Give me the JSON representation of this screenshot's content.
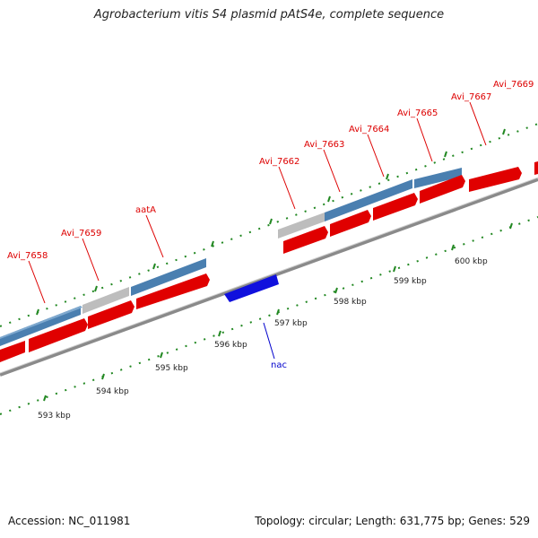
{
  "title": "Agrobacterium vitis S4 plasmid pAtS4e, complete sequence",
  "footer": {
    "accession": "Accession: NC_011981",
    "topology": "Topology: circular; Length: 631,775 bp; Genes: 529"
  },
  "colors": {
    "forward_gene": "#e00000",
    "reverse_gene": "#1010dd",
    "cds_feature": "#4a7fb0",
    "pseudo_feature": "#bdbdbd",
    "backbone": "#8a8a8a",
    "tick": "#228822",
    "label_red": "#dd0000",
    "label_blue": "#0000cc"
  },
  "scale": {
    "tick_labels": [
      "593 kbp",
      "594 kbp",
      "595 kbp",
      "596 kbp",
      "597 kbp",
      "598 kbp",
      "599 kbp",
      "600 kbp"
    ]
  },
  "gene_labels": [
    {
      "name": "Avi_7658"
    },
    {
      "name": "Avi_7659"
    },
    {
      "name": "aatA"
    },
    {
      "name": "Avi_7662"
    },
    {
      "name": "Avi_7663"
    },
    {
      "name": "Avi_7664"
    },
    {
      "name": "Avi_7665"
    },
    {
      "name": "Avi_7667"
    },
    {
      "name": "Avi_7669"
    },
    {
      "name": "nac"
    }
  ]
}
